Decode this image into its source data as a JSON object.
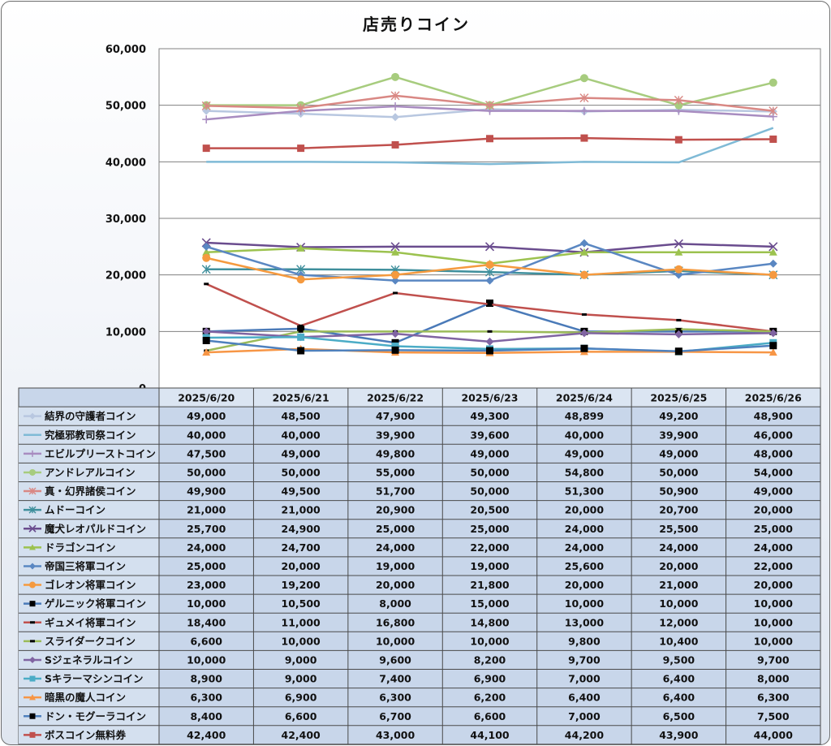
{
  "chart_data": {
    "type": "line",
    "title": "店売りコイン",
    "categories": [
      "2025/6/20",
      "2025/6/21",
      "2025/6/22",
      "2025/6/23",
      "2025/6/24",
      "2025/6/25",
      "2025/6/26"
    ],
    "ylim": [
      0,
      60000
    ],
    "yticks": [
      "0",
      "10,000",
      "20,000",
      "30,000",
      "40,000",
      "50,000",
      "60,000"
    ],
    "grid": true,
    "legend": "table-left",
    "series": [
      {
        "name": "結界の守護者コイン",
        "color": "#b8c7e0",
        "marker": "diamond",
        "values": [
          49000,
          48500,
          47900,
          49300,
          48899,
          49200,
          48900
        ],
        "labels": [
          "49,000",
          "48,500",
          "47,900",
          "49,300",
          "48,899",
          "49,200",
          "48,900"
        ]
      },
      {
        "name": "究極邪教司祭コイン",
        "color": "#7fbad6",
        "marker": "none",
        "values": [
          40000,
          40000,
          39900,
          39600,
          40000,
          39900,
          46000
        ],
        "labels": [
          "40,000",
          "40,000",
          "39,900",
          "39,600",
          "40,000",
          "39,900",
          "46,000"
        ]
      },
      {
        "name": "エビルプリーストコイン",
        "color": "#a88cc0",
        "marker": "plus",
        "values": [
          47500,
          49000,
          49800,
          49000,
          49000,
          49000,
          48000
        ],
        "labels": [
          "47,500",
          "49,000",
          "49,800",
          "49,000",
          "49,000",
          "49,000",
          "48,000"
        ]
      },
      {
        "name": "アンドレアルコイン",
        "color": "#a7cc7e",
        "marker": "circle",
        "values": [
          50000,
          50000,
          55000,
          50000,
          54800,
          50000,
          54000
        ],
        "labels": [
          "50,000",
          "50,000",
          "55,000",
          "50,000",
          "54,800",
          "50,000",
          "54,000"
        ]
      },
      {
        "name": "真・幻界諸侯コイン",
        "color": "#d98884",
        "marker": "star",
        "values": [
          49900,
          49500,
          51700,
          50000,
          51300,
          50900,
          49000
        ],
        "labels": [
          "49,900",
          "49,500",
          "51,700",
          "50,000",
          "51,300",
          "50,900",
          "49,000"
        ]
      },
      {
        "name": "ムドーコイン",
        "color": "#3f8f9c",
        "marker": "star",
        "values": [
          21000,
          21000,
          20900,
          20500,
          20000,
          20700,
          20000
        ],
        "labels": [
          "21,000",
          "21,000",
          "20,900",
          "20,500",
          "20,000",
          "20,700",
          "20,000"
        ]
      },
      {
        "name": "魔犬レオパルドコイン",
        "color": "#6a4c8e",
        "marker": "x",
        "values": [
          25700,
          24900,
          25000,
          25000,
          24000,
          25500,
          25000
        ],
        "labels": [
          "25,700",
          "24,900",
          "25,000",
          "25,000",
          "24,000",
          "25,500",
          "25,000"
        ]
      },
      {
        "name": "ドラゴンコイン",
        "color": "#9cc24f",
        "marker": "triangle",
        "values": [
          24000,
          24700,
          24000,
          22000,
          24000,
          24000,
          24000
        ],
        "labels": [
          "24,000",
          "24,700",
          "24,000",
          "22,000",
          "24,000",
          "24,000",
          "24,000"
        ]
      },
      {
        "name": "帝国三将軍コイン",
        "color": "#5a87c2",
        "marker": "diamond",
        "values": [
          25000,
          20000,
          19000,
          19000,
          25600,
          20000,
          22000
        ],
        "labels": [
          "25,000",
          "20,000",
          "19,000",
          "19,000",
          "25,600",
          "20,000",
          "22,000"
        ]
      },
      {
        "name": "ゴレオン将軍コイン",
        "color": "#f59a3f",
        "marker": "circle",
        "values": [
          23000,
          19200,
          20000,
          21800,
          20000,
          21000,
          20000
        ],
        "labels": [
          "23,000",
          "19,200",
          "20,000",
          "21,800",
          "20,000",
          "21,000",
          "20,000"
        ]
      },
      {
        "name": "ゲルニック将軍コイン",
        "color": "#4a7ab8",
        "marker": "square-black",
        "values": [
          10000,
          10500,
          8000,
          15000,
          10000,
          10000,
          10000
        ],
        "labels": [
          "10,000",
          "10,500",
          "8,000",
          "15,000",
          "10,000",
          "10,000",
          "10,000"
        ]
      },
      {
        "name": "ギュメイ将軍コイン",
        "color": "#c0504d",
        "marker": "dash-black",
        "values": [
          18400,
          11000,
          16800,
          14800,
          13000,
          12000,
          10000
        ],
        "labels": [
          "18,400",
          "11,000",
          "16,800",
          "14,800",
          "13,000",
          "12,000",
          "10,000"
        ]
      },
      {
        "name": "スライダークコイン",
        "color": "#9bbb59",
        "marker": "dash-black",
        "values": [
          6600,
          10000,
          10000,
          10000,
          9800,
          10400,
          10000
        ],
        "labels": [
          "6,600",
          "10,000",
          "10,000",
          "10,000",
          "9,800",
          "10,400",
          "10,000"
        ]
      },
      {
        "name": "Sジェネラルコイン",
        "color": "#8064a2",
        "marker": "diamond",
        "values": [
          10000,
          9000,
          9600,
          8200,
          9700,
          9500,
          9700
        ],
        "labels": [
          "10,000",
          "9,000",
          "9,600",
          "8,200",
          "9,700",
          "9,500",
          "9,700"
        ]
      },
      {
        "name": "Sキラーマシンコイン",
        "color": "#4bacc6",
        "marker": "square",
        "values": [
          8900,
          9000,
          7400,
          6900,
          7000,
          6400,
          8000
        ],
        "labels": [
          "8,900",
          "9,000",
          "7,400",
          "6,900",
          "7,000",
          "6,400",
          "8,000"
        ]
      },
      {
        "name": "暗黒の魔人コイン",
        "color": "#f79646",
        "marker": "triangle",
        "values": [
          6300,
          6900,
          6300,
          6200,
          6400,
          6400,
          6300
        ],
        "labels": [
          "6,300",
          "6,900",
          "6,300",
          "6,200",
          "6,400",
          "6,400",
          "6,300"
        ]
      },
      {
        "name": "ドン・モグーラコイン",
        "color": "#4f81bd",
        "marker": "square-black",
        "values": [
          8400,
          6600,
          6700,
          6600,
          7000,
          6500,
          7500
        ],
        "labels": [
          "8,400",
          "6,600",
          "6,700",
          "6,600",
          "7,000",
          "6,500",
          "7,500"
        ]
      },
      {
        "name": "ボスコイン無料券",
        "color": "#c0504d",
        "marker": "square",
        "values": [
          42400,
          42400,
          43000,
          44100,
          44200,
          43900,
          44000
        ],
        "labels": [
          "42,400",
          "42,400",
          "43,000",
          "44,100",
          "44,200",
          "43,900",
          "44,000"
        ]
      }
    ]
  }
}
